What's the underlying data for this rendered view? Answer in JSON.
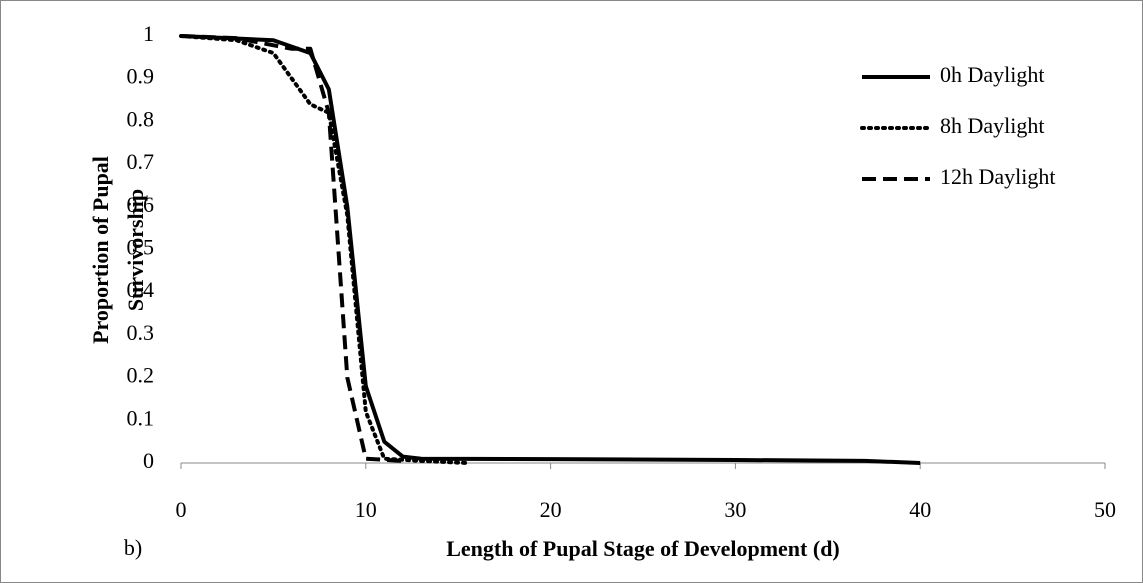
{
  "chart_data": {
    "type": "line",
    "x_label": "Length of Pupal Stage of Development (d)",
    "y_label": [
      "Proportion of Pupal",
      "Survivorship"
    ],
    "annotation": "b)",
    "xlim": [
      0,
      50
    ],
    "xticks": [
      0,
      10,
      20,
      30,
      40,
      50
    ],
    "ylim": [
      0,
      1
    ],
    "yticks": [
      0,
      0.1,
      0.2,
      0.3,
      0.4,
      0.5,
      0.6,
      0.7,
      0.8,
      0.9,
      1
    ],
    "legend": "upper right",
    "series": [
      {
        "name": "0h Daylight",
        "color": "#000000",
        "style": "solid",
        "x": [
          0,
          5,
          7,
          8,
          9,
          10,
          11,
          12,
          13,
          20,
          30,
          37,
          40
        ],
        "values": [
          1,
          0.99,
          0.96,
          0.875,
          0.6,
          0.18,
          0.05,
          0.015,
          0.01,
          0.009,
          0.007,
          0.005,
          0
        ]
      },
      {
        "name": "8h Daylight",
        "color": "#000000",
        "style": "dotted",
        "x": [
          0,
          3,
          5,
          7,
          8,
          9,
          10,
          11,
          13,
          15.5
        ],
        "values": [
          1,
          0.99,
          0.96,
          0.84,
          0.82,
          0.58,
          0.12,
          0.01,
          0.005,
          0
        ]
      },
      {
        "name": "12h Daylight",
        "color": "#000000",
        "style": "dashed",
        "x": [
          0,
          3,
          6,
          7,
          8,
          9,
          10,
          12
        ],
        "values": [
          1,
          0.995,
          0.97,
          0.97,
          0.82,
          0.2,
          0.01,
          0.005
        ]
      }
    ]
  }
}
